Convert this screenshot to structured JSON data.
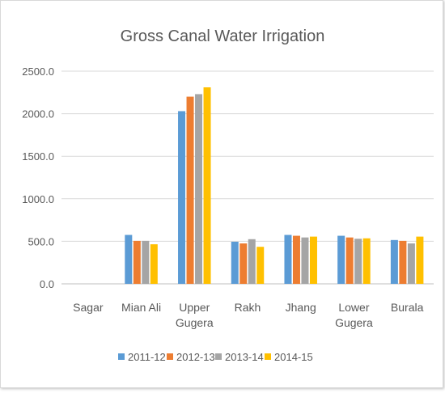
{
  "chart_data": {
    "type": "bar",
    "title": "Gross Canal Water Irrigation",
    "xlabel": "",
    "ylabel": "",
    "ylim": [
      0,
      2500
    ],
    "yticks": [
      "0.0",
      "500.0",
      "1000.0",
      "1500.0",
      "2000.0",
      "2500.0"
    ],
    "grid": true,
    "legend_position": "bottom",
    "categories": [
      [
        "Sagar"
      ],
      [
        "Mian Ali"
      ],
      [
        "Upper",
        "Gugera"
      ],
      [
        "Rakh"
      ],
      [
        "Jhang"
      ],
      [
        "Lower",
        "Gugera"
      ],
      [
        "Burala"
      ]
    ],
    "series": [
      {
        "name": "2011-12",
        "color": "#5b9bd5",
        "values": [
          0,
          575,
          2030,
          495,
          575,
          565,
          515
        ]
      },
      {
        "name": "2012-13",
        "color": "#ed7d31",
        "values": [
          0,
          505,
          2200,
          475,
          565,
          545,
          505
        ]
      },
      {
        "name": "2013-14",
        "color": "#a5a5a5",
        "values": [
          0,
          505,
          2230,
          525,
          545,
          530,
          475
        ]
      },
      {
        "name": "2014-15",
        "color": "#ffc000",
        "values": [
          0,
          465,
          2310,
          435,
          555,
          535,
          555
        ]
      }
    ]
  }
}
